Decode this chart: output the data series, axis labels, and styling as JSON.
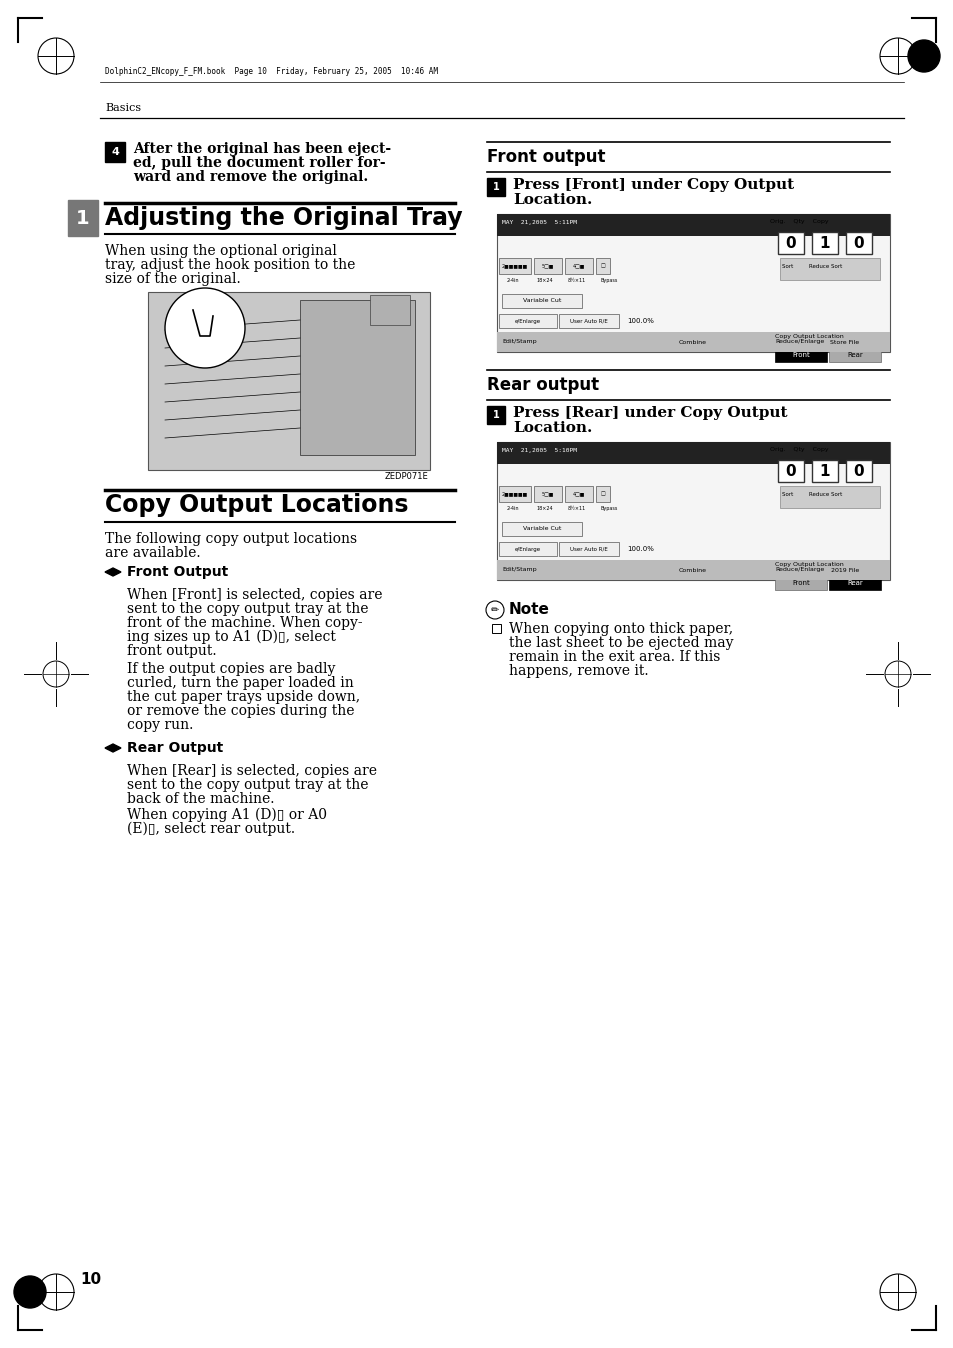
{
  "bg_color": "#ffffff",
  "page_width": 9.54,
  "page_height": 13.48,
  "header_text": "DolphinC2_ENcopy_F_FM.book  Page 10  Friday, February 25, 2005  10:46 AM",
  "section_label": "Basics",
  "chapter_num": "1",
  "step4_line1": "After the original has been eject-",
  "step4_line2": "ed, pull the document roller for-",
  "step4_line3": "ward and remove the original.",
  "section1_title": "Adjusting the Original Tray",
  "section1_body_line1": "When using the optional original",
  "section1_body_line2": "tray, adjust the hook position to the",
  "section1_body_line3": "size of the original.",
  "image1_caption": "ZEDP071E",
  "section2_title": "Copy Output Locations",
  "section2_body_line1": "The following copy output locations",
  "section2_body_line2": "are available.",
  "bullet1_title": "Front Output",
  "bullet1_p1_l1": "When [Front] is selected, copies are",
  "bullet1_p1_l2": "sent to the copy output tray at the",
  "bullet1_p1_l3": "front of the machine. When copy-",
  "bullet1_p1_l4": "ing sizes up to A1 (D)▯, select",
  "bullet1_p1_l5": "front output.",
  "bullet1_p2_l1": "If the output copies are badly",
  "bullet1_p2_l2": "curled, turn the paper loaded in",
  "bullet1_p2_l3": "the cut paper trays upside down,",
  "bullet1_p2_l4": "or remove the copies during the",
  "bullet1_p2_l5": "copy run.",
  "bullet2_title": "Rear Output",
  "bullet2_p1_l1": "When [Rear] is selected, copies are",
  "bullet2_p1_l2": "sent to the copy output tray at the",
  "bullet2_p1_l3": "back of the machine.",
  "bullet2_p2_l1": "When copying A1 (D)▯ or A0",
  "bullet2_p2_l2": "(E)▯, select rear output.",
  "right_front_title": "Front output",
  "right_front_step": "Press [Front] under Copy Output\nLocation.",
  "right_rear_title": "Rear output",
  "right_rear_step": "Press [Rear] under Copy Output\nLocation.",
  "note_title": "Note",
  "note_l1": "When copying onto thick paper,",
  "note_l2": "the last sheet to be ejected may",
  "note_l3": "remain in the exit area. If this",
  "note_l4": "happens, remove it.",
  "page_num": "10",
  "chapter_bg": "#777777",
  "screen_bg": "#f0f0f0",
  "screen_dark": "#111111",
  "screen_mid": "#888888"
}
